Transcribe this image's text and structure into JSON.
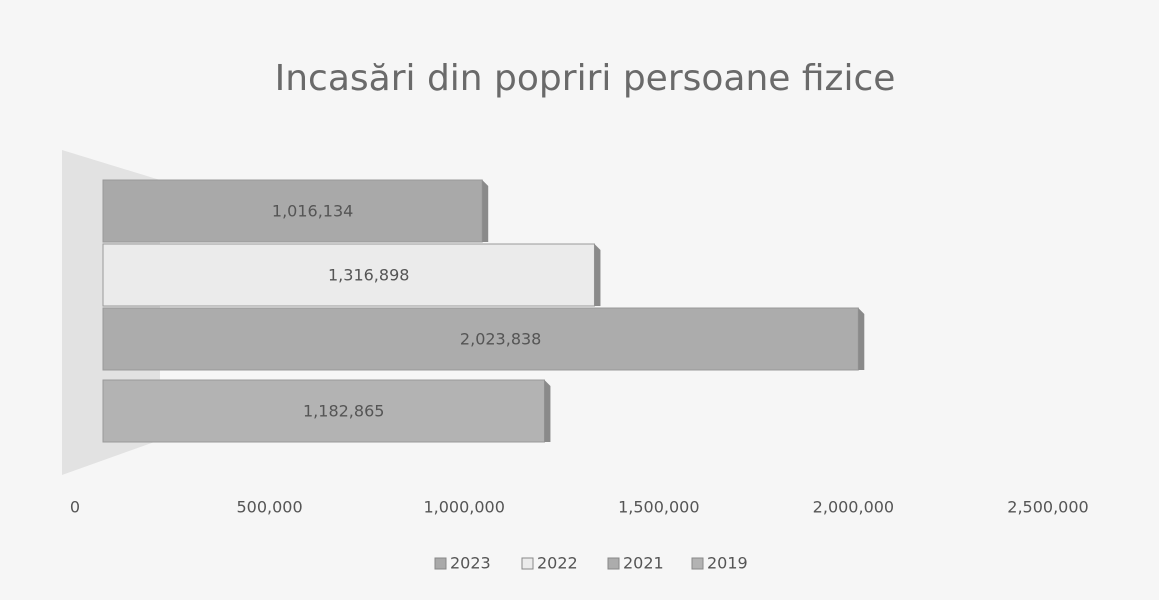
{
  "chart_data": {
    "type": "bar",
    "orientation": "horizontal",
    "title": "Incasări din popriri persoane fizice",
    "categories": [
      null
    ],
    "series": [
      {
        "name": "2023",
        "color": "#a9a9a9",
        "values": [
          1016134
        ],
        "value_labels": [
          "1,016,134"
        ]
      },
      {
        "name": "2022",
        "color": "#ebebeb",
        "values": [
          1316898
        ],
        "value_labels": [
          "1,316,898"
        ]
      },
      {
        "name": "2021",
        "color": "#acacac",
        "values": [
          2023838
        ],
        "value_labels": [
          "2,023,838"
        ]
      },
      {
        "name": "2019",
        "color": "#b3b3b3",
        "values": [
          1182865
        ],
        "value_labels": [
          "1,182,865"
        ]
      }
    ],
    "xlim": [
      0,
      2500000
    ],
    "xticks": [
      0,
      {
        "value": 500000,
        "label": "500,000"
      },
      {
        "value": 1000000,
        "label": "1,000,000"
      },
      {
        "value": 1500000,
        "label": "1,500,000"
      },
      {
        "value": 2000000,
        "label": "2,000,000"
      },
      {
        "value": 2500000,
        "label": "2,500,000"
      }
    ],
    "legend": "bottom"
  }
}
